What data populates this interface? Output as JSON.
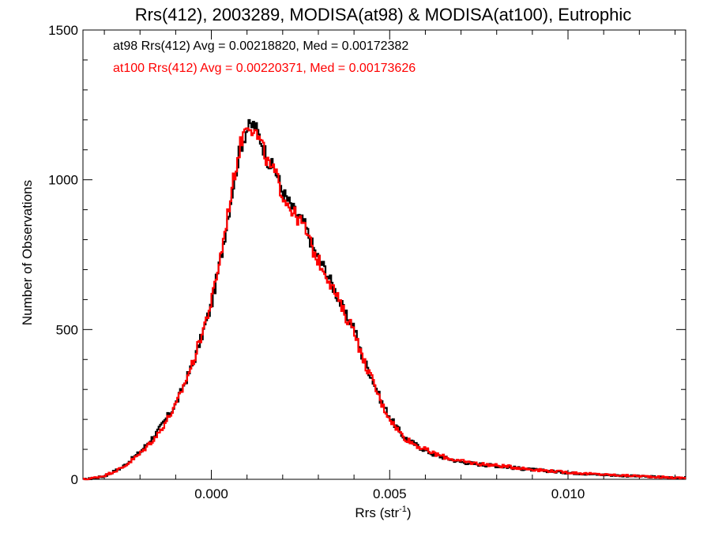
{
  "chart_data": {
    "type": "step-histogram",
    "title": "Rrs(412), 2003289, MODISA(at98) & MODISA(at100), Eutrophic",
    "xlabel_main": "Rrs (str",
    "xlabel_sup": "-1",
    "xlabel_end": ")",
    "ylabel": "Number of Observations",
    "xlim": [
      -0.0036,
      0.0133
    ],
    "ylim": [
      0,
      1500
    ],
    "x_ticks": [
      {
        "value": 0.0,
        "label": "0.000"
      },
      {
        "value": 0.005,
        "label": "0.005"
      },
      {
        "value": 0.01,
        "label": "0.010"
      }
    ],
    "y_ticks": [
      {
        "value": 0,
        "label": "0"
      },
      {
        "value": 500,
        "label": "500"
      },
      {
        "value": 1000,
        "label": "1000"
      },
      {
        "value": 1500,
        "label": "1500"
      }
    ],
    "annotations": [
      {
        "text": "at98 Rrs(412) Avg = 0.00218820, Med = 0.00172382",
        "color": "#000000"
      },
      {
        "text": "at100 Rrs(412) Avg = 0.00220371, Med = 0.00173626",
        "color": "#ff0000"
      }
    ],
    "series": [
      {
        "color": "#000000",
        "points": [
          [
            -0.0035,
            0
          ],
          [
            -0.003,
            10
          ],
          [
            -0.0025,
            40
          ],
          [
            -0.002,
            90
          ],
          [
            -0.0015,
            160
          ],
          [
            -0.001,
            250
          ],
          [
            -0.0005,
            390
          ],
          [
            0.0,
            580
          ],
          [
            0.0003,
            760
          ],
          [
            0.0006,
            970
          ],
          [
            0.0008,
            1100
          ],
          [
            0.001,
            1170
          ],
          [
            0.0012,
            1185
          ],
          [
            0.0014,
            1130
          ],
          [
            0.0016,
            1060
          ],
          [
            0.0018,
            1030
          ],
          [
            0.002,
            960
          ],
          [
            0.0023,
            900
          ],
          [
            0.0026,
            855
          ],
          [
            0.0029,
            760
          ],
          [
            0.0032,
            700
          ],
          [
            0.0035,
            620
          ],
          [
            0.0038,
            540
          ],
          [
            0.004,
            510
          ],
          [
            0.0042,
            420
          ],
          [
            0.0045,
            340
          ],
          [
            0.0048,
            250
          ],
          [
            0.0051,
            190
          ],
          [
            0.0054,
            140
          ],
          [
            0.0058,
            110
          ],
          [
            0.0062,
            85
          ],
          [
            0.0066,
            70
          ],
          [
            0.007,
            58
          ],
          [
            0.0075,
            50
          ],
          [
            0.008,
            45
          ],
          [
            0.0085,
            38
          ],
          [
            0.009,
            32
          ],
          [
            0.0095,
            27
          ],
          [
            0.01,
            22
          ],
          [
            0.0105,
            18
          ],
          [
            0.011,
            15
          ],
          [
            0.0115,
            12
          ],
          [
            0.012,
            10
          ],
          [
            0.0125,
            8
          ],
          [
            0.013,
            5
          ]
        ]
      },
      {
        "color": "#ff0000",
        "points": [
          [
            -0.0035,
            0
          ],
          [
            -0.003,
            12
          ],
          [
            -0.0025,
            38
          ],
          [
            -0.002,
            85
          ],
          [
            -0.0015,
            150
          ],
          [
            -0.001,
            245
          ],
          [
            -0.0005,
            395
          ],
          [
            0.0,
            590
          ],
          [
            0.0003,
            770
          ],
          [
            0.0006,
            985
          ],
          [
            0.0008,
            1110
          ],
          [
            0.001,
            1195
          ],
          [
            0.0012,
            1165
          ],
          [
            0.0014,
            1120
          ],
          [
            0.0016,
            1050
          ],
          [
            0.0018,
            1020
          ],
          [
            0.002,
            950
          ],
          [
            0.0023,
            890
          ],
          [
            0.0026,
            845
          ],
          [
            0.0029,
            750
          ],
          [
            0.0032,
            690
          ],
          [
            0.0035,
            615
          ],
          [
            0.0038,
            535
          ],
          [
            0.004,
            505
          ],
          [
            0.0042,
            415
          ],
          [
            0.0045,
            335
          ],
          [
            0.0048,
            245
          ],
          [
            0.0051,
            185
          ],
          [
            0.0054,
            140
          ],
          [
            0.0058,
            110
          ],
          [
            0.0062,
            88
          ],
          [
            0.0066,
            72
          ],
          [
            0.007,
            60
          ],
          [
            0.0075,
            52
          ],
          [
            0.008,
            46
          ],
          [
            0.0085,
            40
          ],
          [
            0.009,
            33
          ],
          [
            0.0095,
            28
          ],
          [
            0.01,
            23
          ],
          [
            0.0105,
            19
          ],
          [
            0.011,
            16
          ],
          [
            0.0115,
            13
          ],
          [
            0.012,
            11
          ],
          [
            0.0125,
            8
          ],
          [
            0.013,
            5
          ]
        ]
      }
    ]
  }
}
